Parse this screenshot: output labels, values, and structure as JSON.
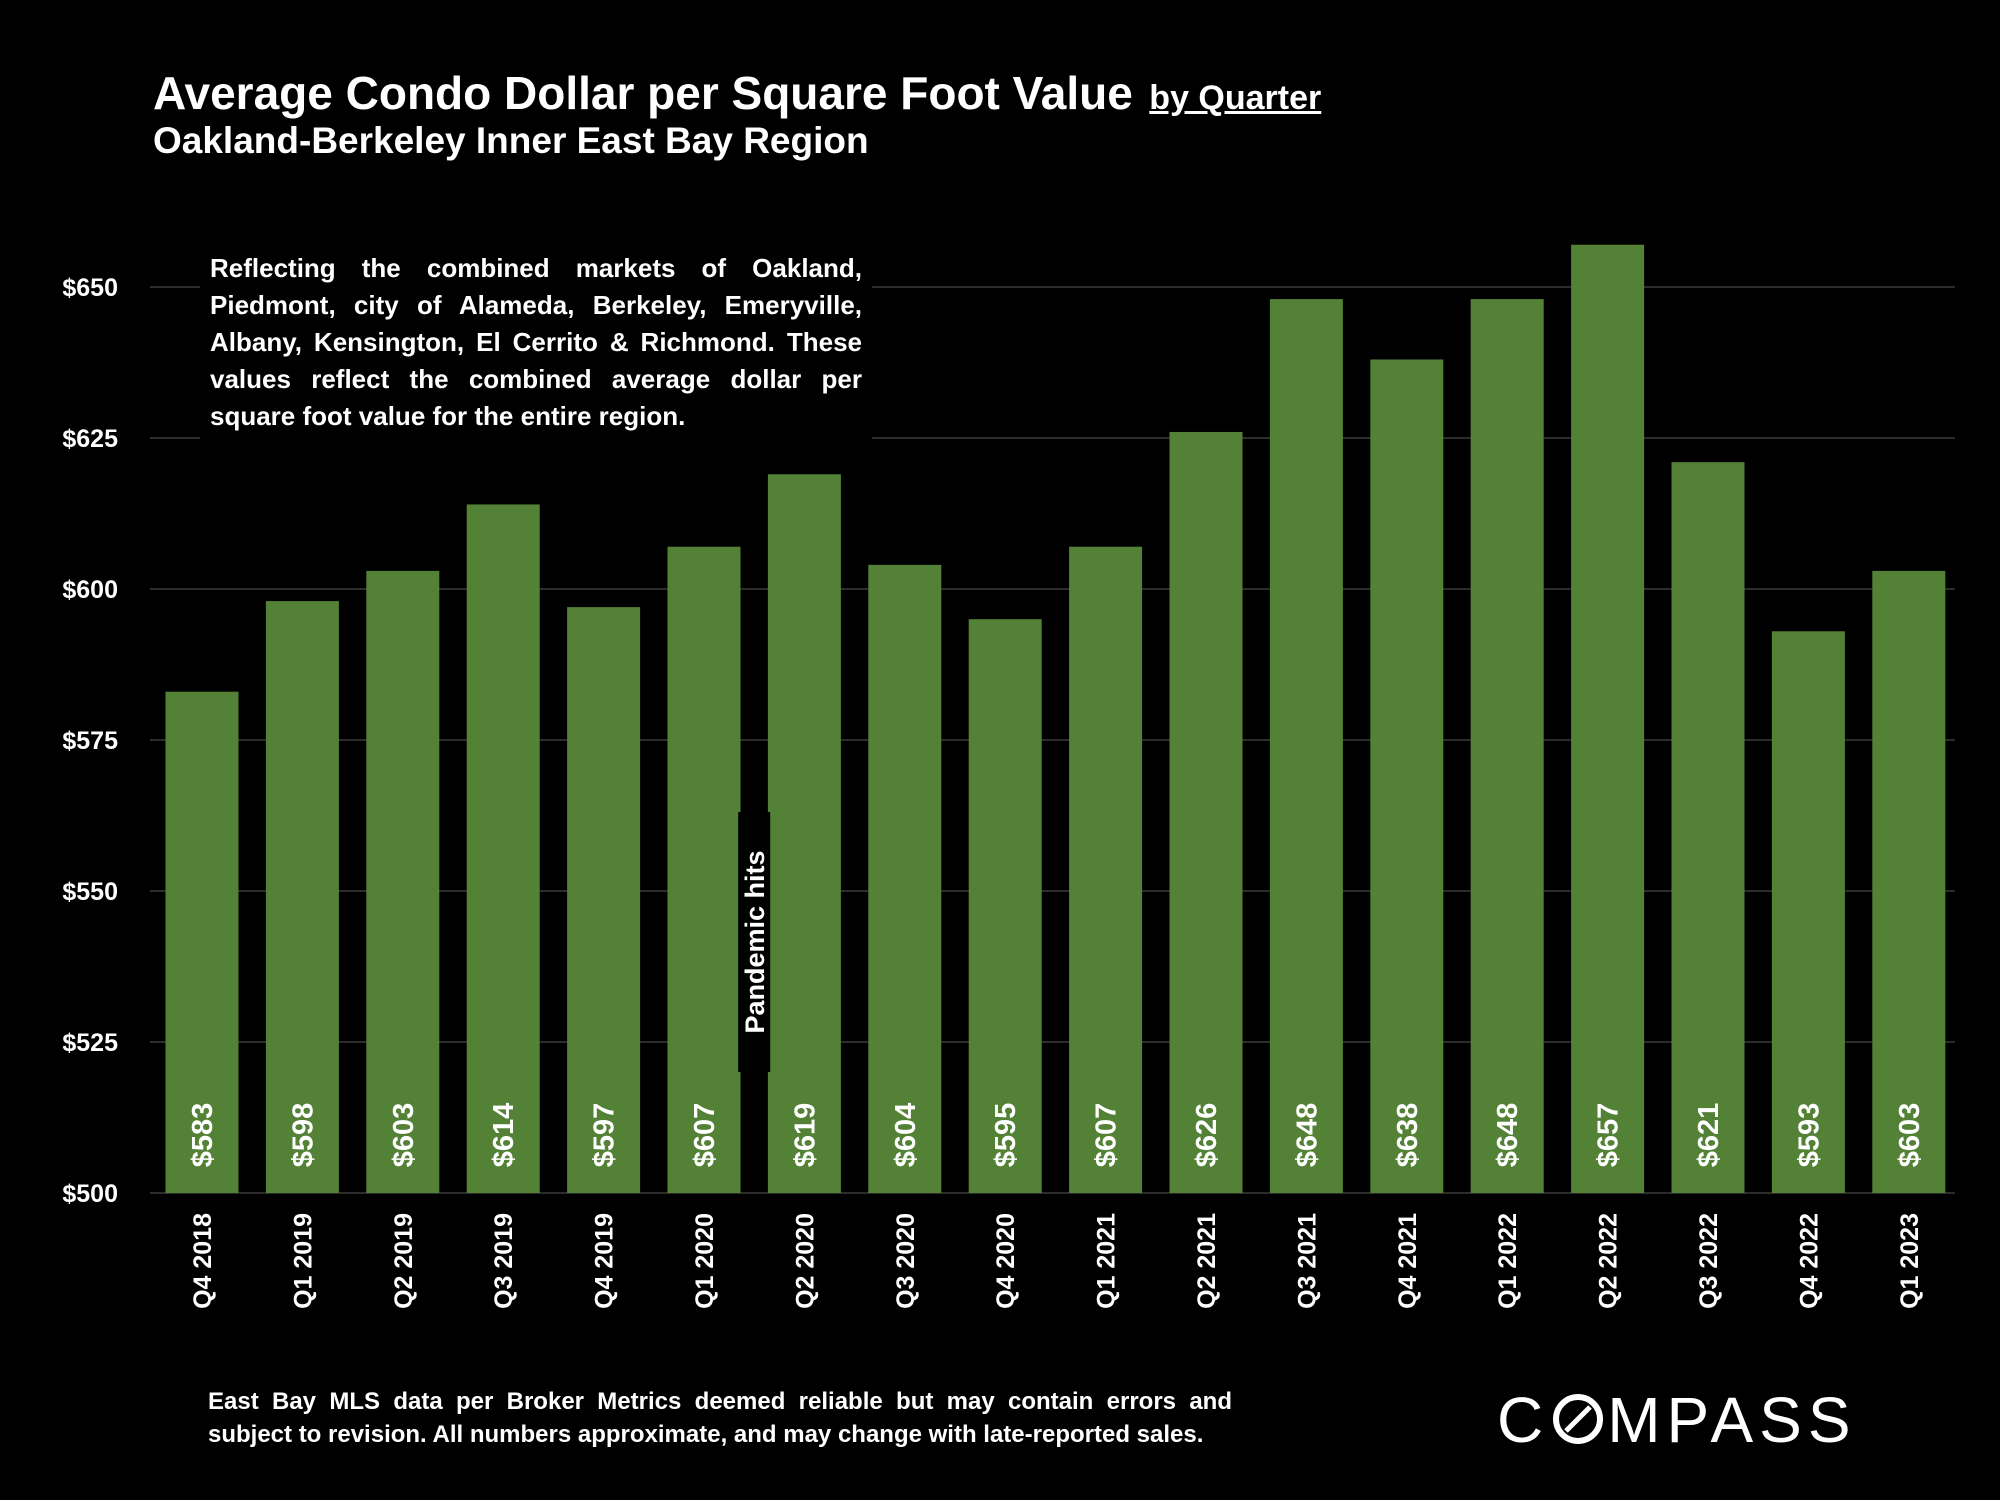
{
  "header": {
    "title": "Average Condo Dollar per Square Foot Value",
    "title_suffix": "by Quarter",
    "subtitle": "Oakland-Berkeley Inner East Bay Region"
  },
  "annotation": {
    "text": "Reflecting the combined markets of Oakland, Piedmont, city of Alameda, Berkeley, Emeryville, Albany, Kensington, El Cerrito & Richmond. These values reflect the combined average dollar per square foot value for the entire region.",
    "event_label": "Pandemic hits"
  },
  "footer": {
    "note": "East Bay MLS data per Broker Metrics  deemed reliable but may contain errors and subject to revision. All numbers approximate, and may change with late-reported sales.",
    "logo_left": "C",
    "logo_right": "MPASS",
    "logo_icon": "compass-o-icon"
  },
  "chart_data": {
    "type": "bar",
    "categories": [
      "Q4 2018",
      "Q1 2019",
      "Q2 2019",
      "Q3 2019",
      "Q4 2019",
      "Q1 2020",
      "Q2 2020",
      "Q3 2020",
      "Q4 2020",
      "Q1 2021",
      "Q2 2021",
      "Q3 2021",
      "Q4 2021",
      "Q1 2022",
      "Q2 2022",
      "Q3 2022",
      "Q4 2022",
      "Q1 2023"
    ],
    "values": [
      583,
      598,
      603,
      614,
      597,
      607,
      619,
      604,
      595,
      607,
      626,
      648,
      638,
      648,
      657,
      621,
      593,
      603
    ],
    "data_labels": [
      "$583",
      "$598",
      "$603",
      "$614",
      "$597",
      "$607",
      "$619",
      "$604",
      "$595",
      "$607",
      "$626",
      "$648",
      "$638",
      "$648",
      "$657",
      "$621",
      "$593",
      "$603"
    ],
    "y_ticks": [
      500,
      525,
      550,
      575,
      600,
      625,
      650
    ],
    "y_tick_labels": [
      "$500",
      "$525",
      "$550",
      "$575",
      "$600",
      "$625",
      "$650"
    ],
    "ylim": [
      500,
      665
    ],
    "grid": true,
    "event_marker": {
      "between": [
        "Q1 2020",
        "Q2 2020"
      ],
      "label": "Pandemic hits"
    },
    "colors": {
      "bar": "#538135",
      "background": "#000000",
      "grid": "#3a3a3a",
      "text": "#ffffff"
    }
  }
}
